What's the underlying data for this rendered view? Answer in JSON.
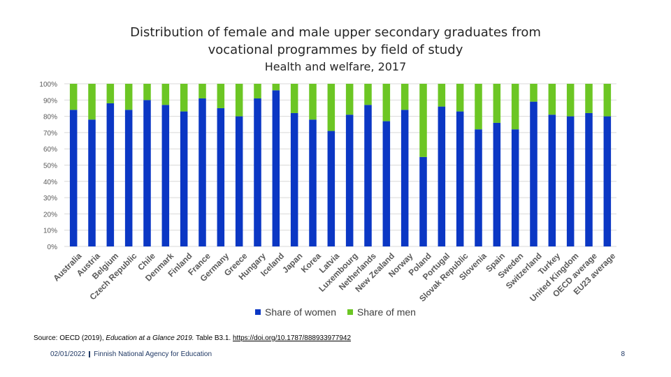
{
  "title_line1": "Distribution of female and male upper secondary graduates from",
  "title_line2": "vocational programmes by field of study",
  "subtitle": "Health and welfare, 2017",
  "colors": {
    "women": "#0b37c4",
    "men": "#6cc624",
    "grid": "#d9d9d9"
  },
  "legend": {
    "women": "Share of women",
    "men": "Share of men"
  },
  "source": {
    "prefix": "Source: OECD (2019), ",
    "publication": "Education at a Glance 2019.",
    "table": " Table B3.1. ",
    "link": "https://doi.org/10.1787/888933977942"
  },
  "footer": {
    "date": "02/01/2022",
    "org": "Finnish National Agency for Education",
    "page": "8"
  },
  "chart_data": {
    "type": "bar",
    "stacked": true,
    "title": "Distribution of female and male upper secondary graduates from vocational programmes by field of study",
    "subtitle": "Health and welfare, 2017",
    "ylim": [
      0,
      100
    ],
    "yticks": [
      "0%",
      "10%",
      "20%",
      "30%",
      "40%",
      "50%",
      "60%",
      "70%",
      "80%",
      "90%",
      "100%"
    ],
    "grid": true,
    "legend_position": "bottom",
    "categories": [
      "Australia",
      "Austria",
      "Belgium",
      "Czech Republic",
      "Chile",
      "Denmark",
      "Finland",
      "France",
      "Germany",
      "Greece",
      "Hungary",
      "Iceland",
      "Japan",
      "Korea",
      "Latvia",
      "Luxembourg",
      "Netherlands",
      "New Zealand",
      "Norway",
      "Poland",
      "Portugal",
      "Slovak Republic",
      "Slovenia",
      "Spain",
      "Sweden",
      "Switzerland",
      "Turkey",
      "United Kingdom",
      "OECD average",
      "EU23 average"
    ],
    "series": [
      {
        "name": "Share of women",
        "values": [
          84,
          78,
          88,
          84,
          90,
          87,
          83,
          91,
          85,
          80,
          91,
          96,
          82,
          78,
          71,
          81,
          87,
          77,
          84,
          55,
          86,
          83,
          72,
          76,
          72,
          89,
          81,
          80,
          82,
          80
        ]
      },
      {
        "name": "Share of men",
        "values": [
          16,
          22,
          12,
          16,
          10,
          13,
          17,
          9,
          15,
          20,
          9,
          4,
          18,
          22,
          29,
          19,
          13,
          23,
          16,
          45,
          14,
          17,
          28,
          24,
          28,
          11,
          19,
          20,
          18,
          20
        ]
      }
    ]
  }
}
